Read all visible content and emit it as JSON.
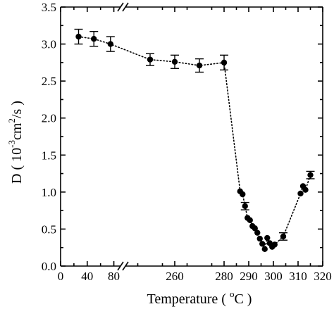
{
  "chart_data": {
    "type": "scatter",
    "title": "",
    "xlabel": "Temperature",
    "xlabel_paren_open": "(",
    "xlabel_unit_sup": "o",
    "xlabel_unit_main": "C )",
    "ylabel_main": "D ( 10",
    "ylabel_exp1": "-3",
    "ylabel_mid": "cm",
    "ylabel_exp2": "2",
    "ylabel_end": "/s )",
    "ylim": [
      0.0,
      3.5
    ],
    "y_ticks": [
      "0.0",
      "0.5",
      "1.0",
      "1.5",
      "2.0",
      "2.5",
      "3.0",
      "3.5"
    ],
    "x_axis_break": true,
    "x_ticks_low": [
      "0",
      "40",
      "80"
    ],
    "x_ticks_high": [
      "280",
      "290",
      "300",
      "310",
      "320"
    ],
    "x_tick_between_break": "",
    "x_tick_between_break_2": "260",
    "x_low_range": [
      0,
      90
    ],
    "x_high_range": [
      240,
      320
    ],
    "series": [
      {
        "marker": "filled-circle",
        "line_style": "dotted",
        "points": [
          {
            "x": 27,
            "y": 3.1,
            "err": 0.1
          },
          {
            "x": 50,
            "y": 3.07,
            "err": 0.1
          },
          {
            "x": 75,
            "y": 3.0,
            "err": 0.1
          },
          {
            "x": 250,
            "y": 2.79,
            "err": 0.08
          },
          {
            "x": 260,
            "y": 2.76,
            "err": 0.09
          },
          {
            "x": 270,
            "y": 2.71,
            "err": 0.09
          },
          {
            "x": 280,
            "y": 2.75,
            "err": 0.1
          },
          {
            "x": 286.5,
            "y": 1.01
          },
          {
            "x": 287.5,
            "y": 0.97
          },
          {
            "x": 288.5,
            "y": 0.81,
            "err": 0.05
          },
          {
            "x": 289.5,
            "y": 0.65
          },
          {
            "x": 290.5,
            "y": 0.62
          },
          {
            "x": 291.5,
            "y": 0.54
          },
          {
            "x": 292.5,
            "y": 0.51
          },
          {
            "x": 293.5,
            "y": 0.45
          },
          {
            "x": 294.5,
            "y": 0.37
          },
          {
            "x": 295.5,
            "y": 0.3
          },
          {
            "x": 296.5,
            "y": 0.23
          },
          {
            "x": 297.5,
            "y": 0.38
          },
          {
            "x": 298.5,
            "y": 0.31
          },
          {
            "x": 299.5,
            "y": 0.26
          },
          {
            "x": 300.5,
            "y": 0.29
          },
          {
            "x": 304,
            "y": 0.4,
            "err": 0.05
          },
          {
            "x": 311,
            "y": 0.98
          },
          {
            "x": 312,
            "y": 1.08
          },
          {
            "x": 313,
            "y": 1.03
          },
          {
            "x": 315,
            "y": 1.23,
            "err": 0.05
          }
        ]
      }
    ]
  }
}
